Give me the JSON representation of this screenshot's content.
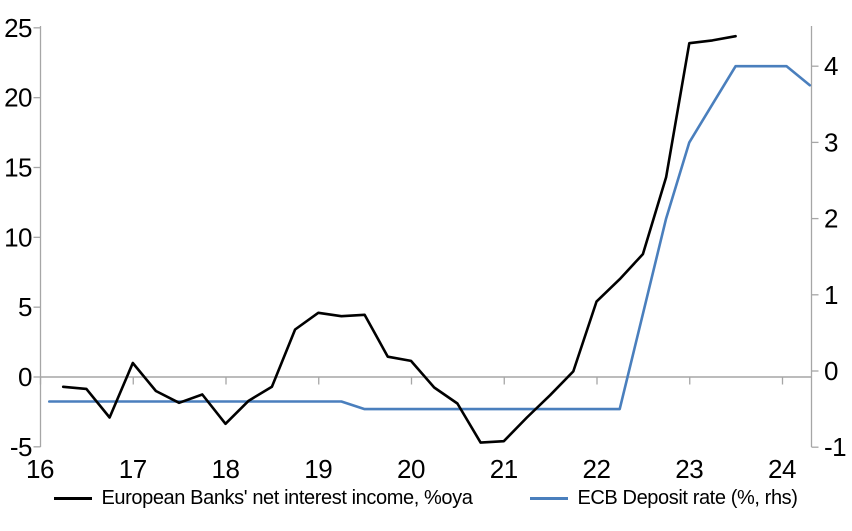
{
  "chart_data": {
    "type": "line",
    "title": "",
    "x_axis": {
      "ticks": [
        16,
        17,
        18,
        19,
        20,
        21,
        22,
        23,
        24
      ],
      "range": [
        16,
        24.35
      ]
    },
    "left_axis": {
      "ticks": [
        25,
        20,
        15,
        10,
        5,
        0,
        -5
      ],
      "range": [
        -5,
        25
      ]
    },
    "right_axis": {
      "ticks": [
        4,
        3,
        2,
        1,
        0,
        -1
      ],
      "range": [
        -1,
        4.5
      ]
    },
    "zero_line": true,
    "grid": "off",
    "legend_position": "bottom",
    "series": [
      {
        "name": "European Banks' net interest income, %oya",
        "axis": "left",
        "color": "#000000",
        "points": [
          [
            16.25,
            -0.7
          ],
          [
            16.5,
            -0.85
          ],
          [
            16.75,
            -2.9
          ],
          [
            17.0,
            1.0
          ],
          [
            17.25,
            -1.0
          ],
          [
            17.5,
            -1.85
          ],
          [
            17.75,
            -1.25
          ],
          [
            18.0,
            -3.35
          ],
          [
            18.25,
            -1.7
          ],
          [
            18.5,
            -0.7
          ],
          [
            18.75,
            3.4
          ],
          [
            19.0,
            4.6
          ],
          [
            19.25,
            4.35
          ],
          [
            19.5,
            4.45
          ],
          [
            19.75,
            1.45
          ],
          [
            20.0,
            1.15
          ],
          [
            20.25,
            -0.75
          ],
          [
            20.5,
            -1.9
          ],
          [
            20.75,
            -4.7
          ],
          [
            21.0,
            -4.6
          ],
          [
            21.25,
            -2.9
          ],
          [
            21.5,
            -1.3
          ],
          [
            21.75,
            0.4
          ],
          [
            22.0,
            5.4
          ],
          [
            22.25,
            7.0
          ],
          [
            22.5,
            8.8
          ],
          [
            22.75,
            14.3
          ],
          [
            23.0,
            23.9
          ],
          [
            23.25,
            24.1
          ],
          [
            23.5,
            24.4
          ]
        ]
      },
      {
        "name": "ECB Deposit rate (%, rhs)",
        "axis": "right",
        "color": "#4a7fbd",
        "points": [
          [
            16.1,
            -0.4
          ],
          [
            19.25,
            -0.4
          ],
          [
            19.5,
            -0.5
          ],
          [
            22.25,
            -0.5
          ],
          [
            22.5,
            0.75
          ],
          [
            22.75,
            2.0
          ],
          [
            23.0,
            3.0
          ],
          [
            23.25,
            3.5
          ],
          [
            23.5,
            4.0
          ],
          [
            24.05,
            4.0
          ],
          [
            24.3,
            3.75
          ]
        ]
      }
    ]
  },
  "colors": {
    "background": "#ffffff",
    "axis_line": "#a6a6a6",
    "zero_line": "#a6a6a6",
    "tick_text": "#000000",
    "nii_line": "#000000",
    "ecb_line": "#4a7fbd"
  }
}
